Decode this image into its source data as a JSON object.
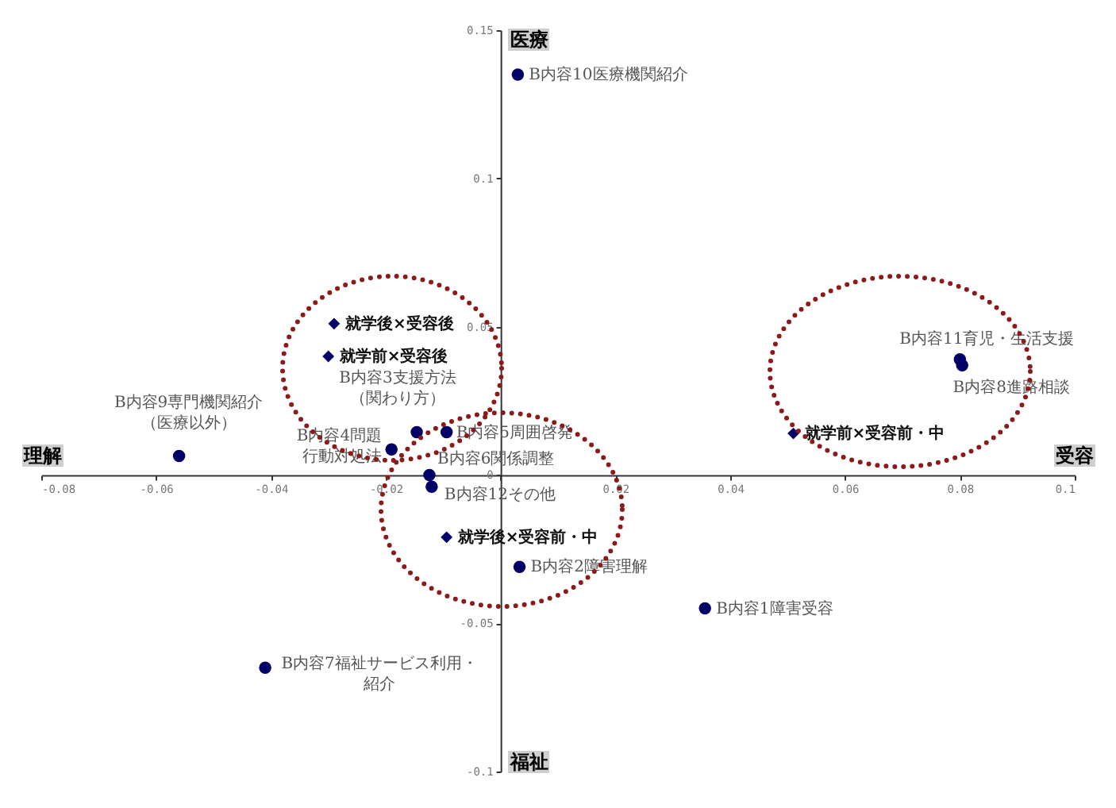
{
  "chart_data": {
    "type": "scatter",
    "xlim": [
      -0.08,
      0.1
    ],
    "ylim": [
      -0.1,
      0.15
    ],
    "xticks": [
      -0.08,
      -0.06,
      -0.04,
      -0.02,
      {
        "value": 0,
        "label": null
      },
      0.02,
      0.04,
      0.06,
      0.08,
      0.1
    ],
    "yticks": [
      -0.1,
      -0.05,
      0,
      0.05,
      0.1,
      0.15
    ],
    "series": [
      {
        "type": "scatter",
        "marker": "circle",
        "color": "#000066",
        "x": [
          0.003,
          -0.056,
          -0.019,
          -0.0146,
          -0.0094,
          -0.0124,
          -0.012,
          0.0033,
          0.0356,
          -0.041,
          0.08,
          0.0804
        ],
        "values": [
          0.135,
          0.0064,
          0.0086,
          0.0144,
          0.0144,
          0,
          -0.004,
          -0.031,
          -0.045,
          -0.065,
          0.039,
          0.037
        ]
      },
      {
        "type": "scatter",
        "marker": "diamond",
        "color": "#000066",
        "x": [
          -0.029,
          -0.03,
          -0.0094,
          0.051
        ],
        "values": [
          0.051,
          0.04,
          -0.021,
          0.014
        ]
      }
    ],
    "annotations": [
      {
        "text": "B内容10医療機関紹介",
        "x": 0.003,
        "y": 0.135
      },
      {
        "text": "就学後×受容後",
        "x": -0.029,
        "y": 0.051
      },
      {
        "text": "就学前×受容後",
        "x": -0.03,
        "y": 0.04
      },
      {
        "text": "B内容3支援方法（関わり方）",
        "x": -0.0146,
        "y": 0.0144
      },
      {
        "text": "B内容9専門機関紹介（医療以外）",
        "x": -0.056,
        "y": 0.0064
      },
      {
        "text": "B内容4問題行動対処法",
        "x": -0.019,
        "y": 0.0086
      },
      {
        "text": "B内容5周囲啓発",
        "x": -0.0094,
        "y": 0.0144
      },
      {
        "text": "B内容6関係調整",
        "x": -0.0124,
        "y": 0
      },
      {
        "text": "B内容12その他",
        "x": -0.012,
        "y": -0.004
      },
      {
        "text": "就学後×受容前・中",
        "x": -0.0094,
        "y": -0.021
      },
      {
        "text": "B内容2障害理解",
        "x": 0.0033,
        "y": -0.031
      },
      {
        "text": "B内容1障害受容",
        "x": 0.0356,
        "y": -0.045
      },
      {
        "text": "B内容7福祉サービス利用・紹介",
        "x": -0.041,
        "y": -0.065
      },
      {
        "text": "就学前×受容前・中",
        "x": 0.051,
        "y": 0.014
      },
      {
        "text": "B内容11育児・生活支援",
        "x": 0.08,
        "y": 0.039
      },
      {
        "text": "B内容8進路相談",
        "x": 0.0804,
        "y": 0.037
      },
      "医療",
      "受容",
      "福祉",
      "理解"
    ]
  }
}
